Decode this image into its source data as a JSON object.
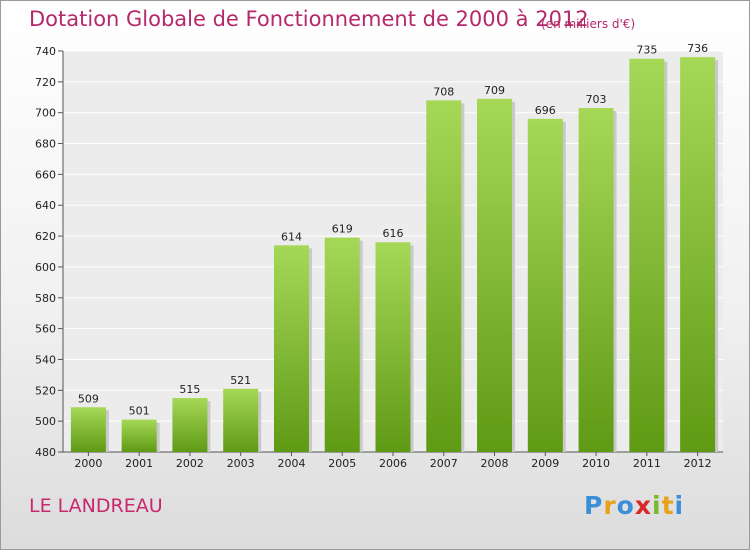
{
  "chart_data": {
    "type": "bar",
    "title": "Dotation Globale de Fonctionnement de 2000 à 2012",
    "subtitle": "(en milliers d'€)",
    "categories": [
      "2000",
      "2001",
      "2002",
      "2003",
      "2004",
      "2005",
      "2006",
      "2007",
      "2008",
      "2009",
      "2010",
      "2011",
      "2012"
    ],
    "values": [
      509,
      501,
      515,
      521,
      614,
      619,
      616,
      708,
      709,
      696,
      703,
      735,
      736
    ],
    "ylim": [
      480,
      740
    ],
    "yticks": [
      480,
      500,
      520,
      540,
      560,
      580,
      600,
      620,
      640,
      660,
      680,
      700,
      720,
      740
    ],
    "grid": true,
    "colors": {
      "bar": "#7fbf2a",
      "bar_light": "#a6d857",
      "bar_dark": "#5f9a15",
      "title": "#b5286a"
    }
  },
  "footer": {
    "commune": "LE LANDREAU",
    "logo_letters": [
      "P",
      "r",
      "o",
      "x",
      "i",
      "t",
      "i"
    ],
    "logo_colors": [
      "#3b8fd9",
      "#e8a21a",
      "#3b8fd9",
      "#d8282a",
      "#7cb82e",
      "#e8a21a",
      "#3b8fd9"
    ]
  }
}
